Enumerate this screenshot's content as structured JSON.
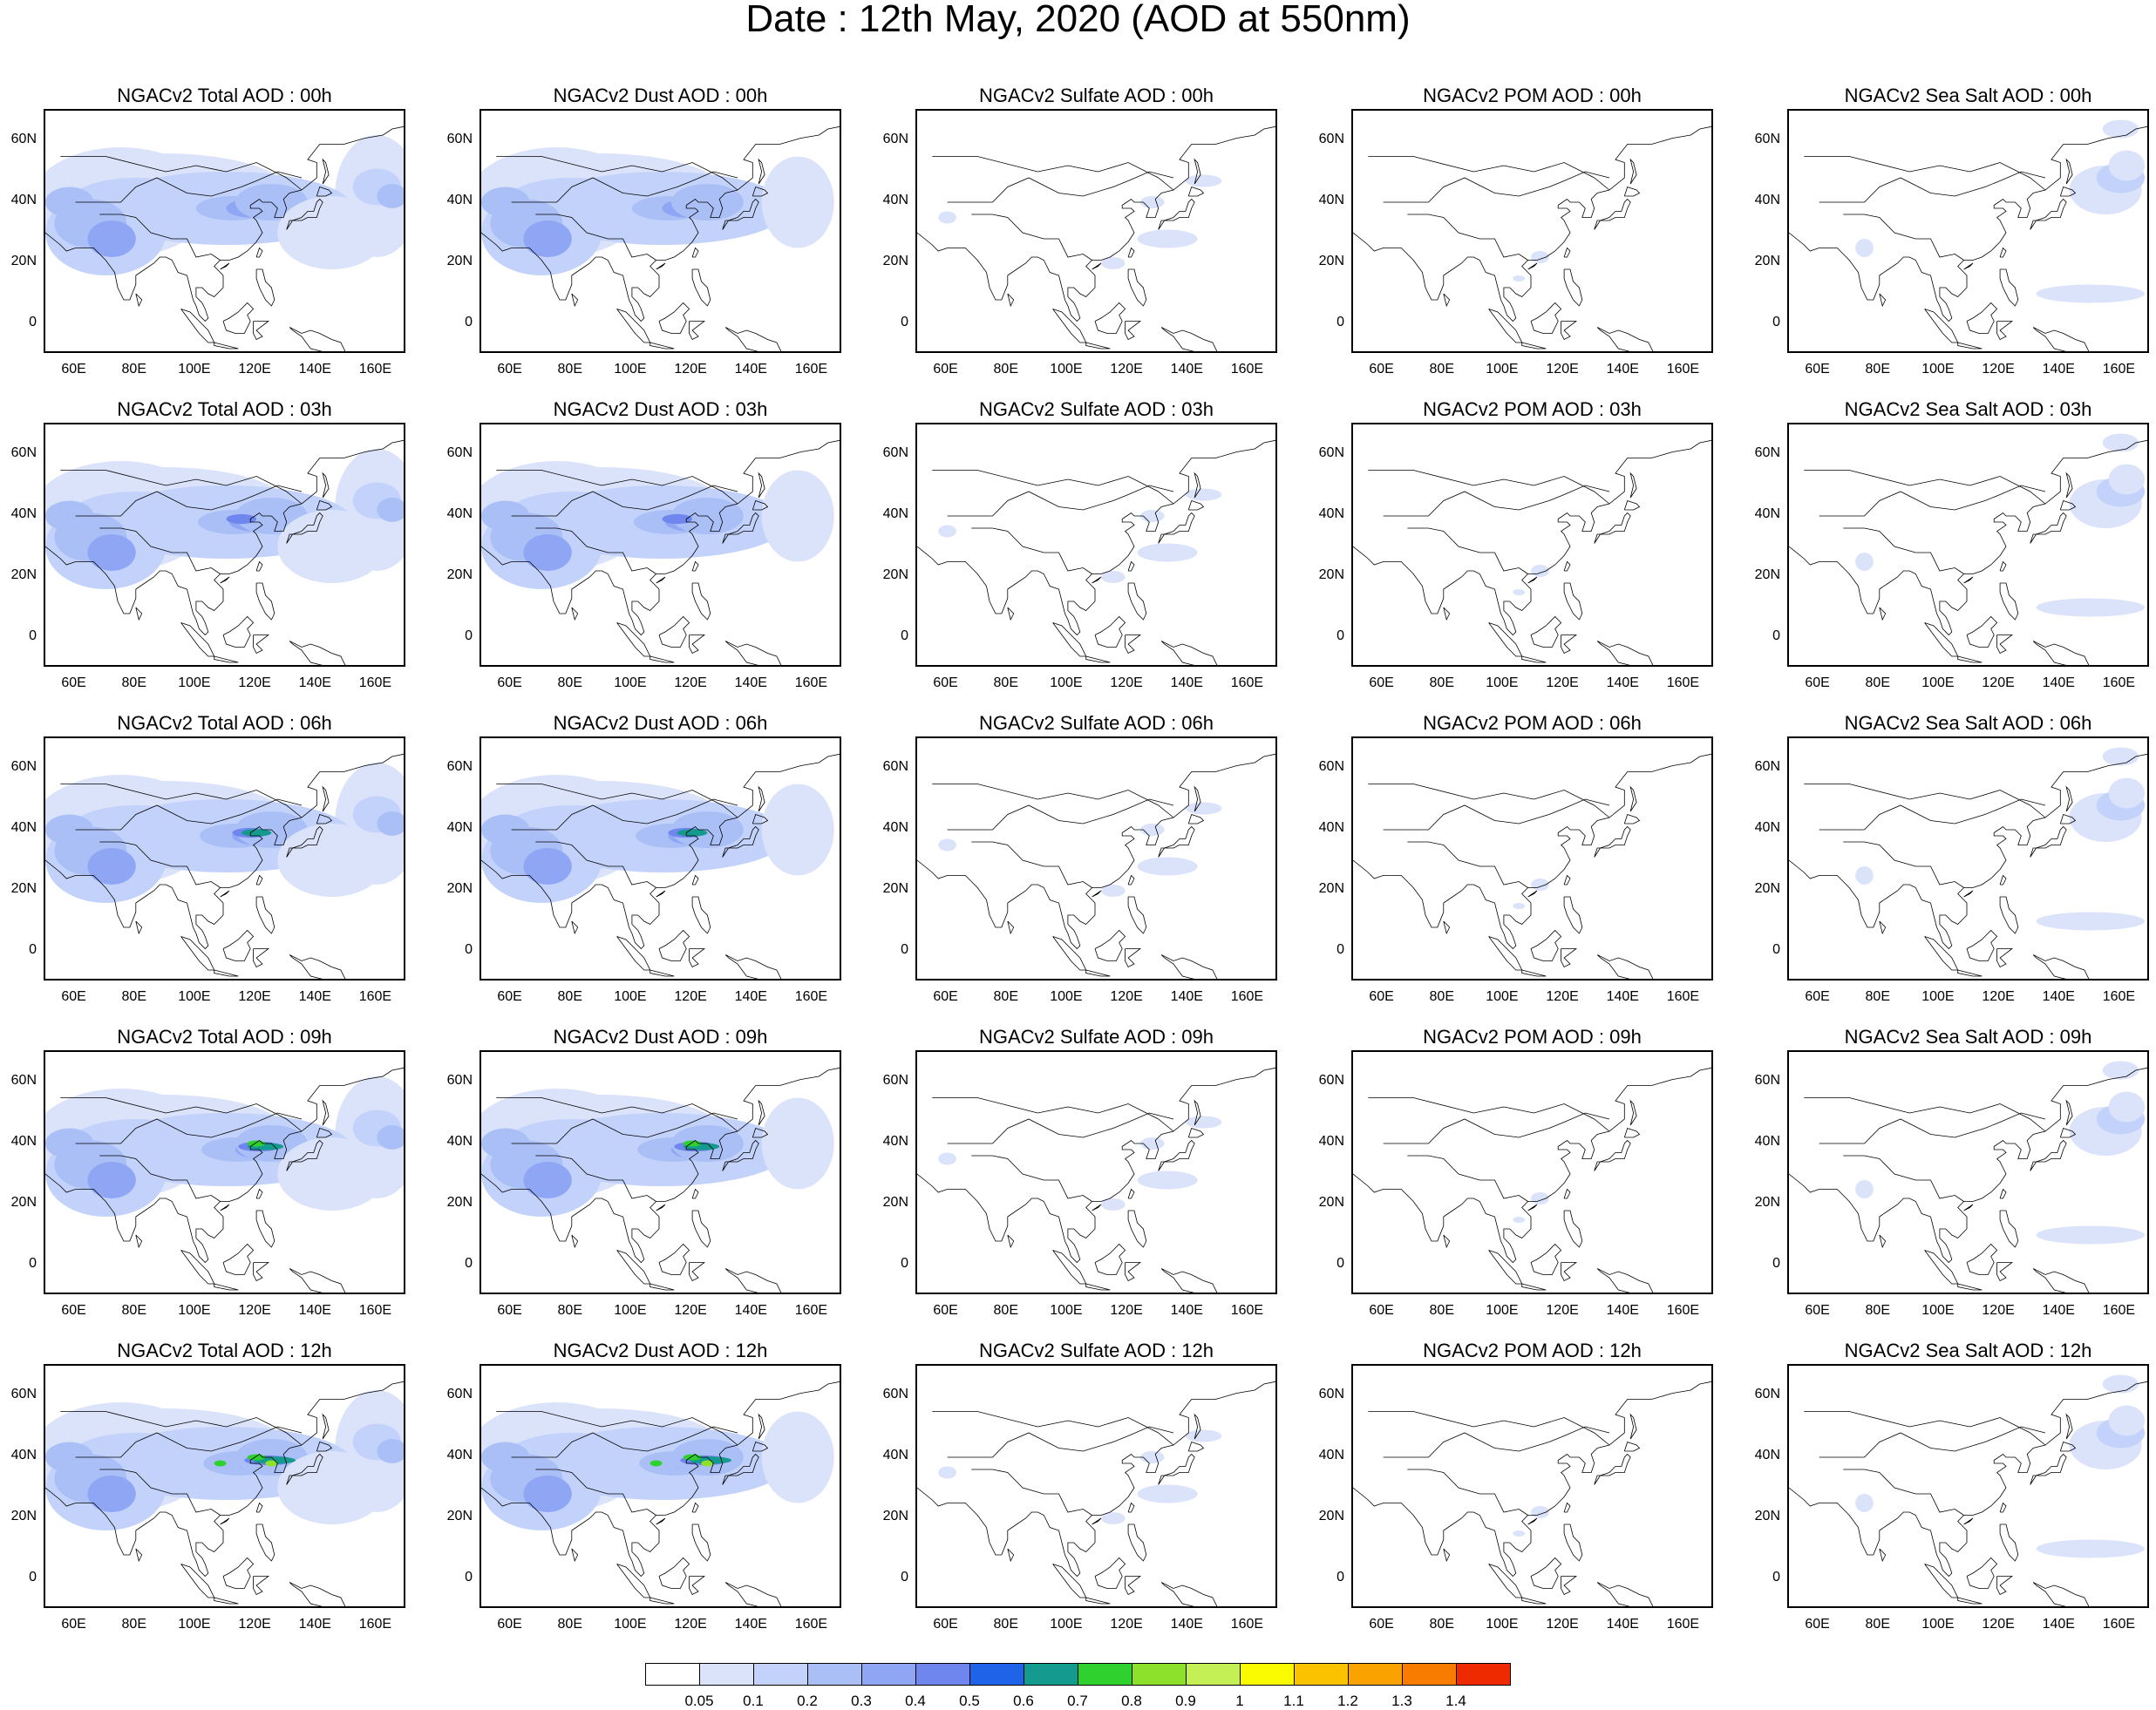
{
  "figure": {
    "title": "Date : 12th May, 2020 (AOD at 550nm)"
  },
  "axes": {
    "y_ticks": [
      "60N",
      "40N",
      "20N",
      "0"
    ],
    "x_ticks": [
      "60E",
      "80E",
      "100E",
      "120E",
      "140E",
      "160E"
    ],
    "lon_range": [
      50,
      170
    ],
    "lat_range": [
      -10,
      70
    ]
  },
  "species": [
    "Total",
    "Dust",
    "Sulfate",
    "POM",
    "Sea Salt"
  ],
  "times": [
    "00h",
    "03h",
    "06h",
    "09h",
    "12h"
  ],
  "panels": [
    [
      "NGACv2 Total AOD : 00h",
      "NGACv2 Dust AOD : 00h",
      "NGACv2 Sulfate AOD : 00h",
      "NGACv2 POM AOD : 00h",
      "NGACv2 Sea Salt AOD : 00h"
    ],
    [
      "NGACv2 Total AOD : 03h",
      "NGACv2 Dust AOD : 03h",
      "NGACv2 Sulfate AOD : 03h",
      "NGACv2 POM AOD : 03h",
      "NGACv2 Sea Salt AOD : 03h"
    ],
    [
      "NGACv2 Total AOD : 06h",
      "NGACv2 Dust AOD : 06h",
      "NGACv2 Sulfate AOD : 06h",
      "NGACv2 POM AOD : 06h",
      "NGACv2 Sea Salt AOD : 06h"
    ],
    [
      "NGACv2 Total AOD : 09h",
      "NGACv2 Dust AOD : 09h",
      "NGACv2 Sulfate AOD : 09h",
      "NGACv2 POM AOD : 09h",
      "NGACv2 Sea Salt  AOD : 09h"
    ],
    [
      "NGACv2 Total AOD  : 12h",
      "NGACv2 Dust AOD : 12h",
      "NGACv2 Sulfate AOD : 12h",
      "NGACv2 POM  AOD : 12h",
      "NGACv2 Sea Salt  AOD : 12h"
    ]
  ],
  "colorbar": {
    "labels": [
      "0.05",
      "0.1",
      "0.2",
      "0.3",
      "0.4",
      "0.5",
      "0.6",
      "0.7",
      "0.8",
      "0.9",
      "1",
      "1.1",
      "1.2",
      "1.3",
      "1.4"
    ],
    "colors": [
      "#ffffff",
      "#dbe3fb",
      "#c3d2fa",
      "#abbff7",
      "#8ea6f4",
      "#6f86ee",
      "#1f64e8",
      "#159a90",
      "#2fd12f",
      "#8de12a",
      "#c4f055",
      "#fbfb00",
      "#fbc200",
      "#f9a200",
      "#f77c00",
      "#ef2a00"
    ]
  },
  "chart_data": {
    "type": "heatmap",
    "title": "Date : 12th May, 2020 (AOD at 550nm)",
    "variable": "AOD at 550nm",
    "date": "12th May, 2020",
    "rows": [
      "00h",
      "03h",
      "06h",
      "09h",
      "12h"
    ],
    "columns": [
      "Total",
      "Dust",
      "Sulfate",
      "POM",
      "Sea Salt"
    ],
    "lon_range": [
      50,
      170
    ],
    "lat_range": [
      -10,
      70
    ],
    "levels": [
      0.05,
      0.1,
      0.2,
      0.3,
      0.4,
      0.5,
      0.6,
      0.7,
      0.8,
      0.9,
      1,
      1.1,
      1.2,
      1.3,
      1.4
    ],
    "features": {
      "Total": [
        {
          "name": "dust band across northern China",
          "lon": [
            80,
            165
          ],
          "lat": [
            30,
            50
          ],
          "max_aod": 0.9
        },
        {
          "name": "northern India / Pakistan plume",
          "lon": [
            55,
            95
          ],
          "lat": [
            15,
            40
          ],
          "max_aod": 0.5
        },
        {
          "name": "western Pacific outflow",
          "lon": [
            140,
            170
          ],
          "lat": [
            25,
            55
          ],
          "max_aod": 0.4
        }
      ],
      "Dust": [
        {
          "name": "dust band across northern China",
          "lon": [
            80,
            150
          ],
          "lat": [
            30,
            50
          ],
          "max_aod": 0.9
        },
        {
          "name": "northern India / Pakistan plume",
          "lon": [
            55,
            95
          ],
          "lat": [
            15,
            40
          ],
          "max_aod": 0.4
        }
      ],
      "Sulfate": [
        {
          "name": "East China Sea / Japan patches",
          "lon": [
            110,
            150
          ],
          "lat": [
            20,
            45
          ],
          "max_aod": 0.2
        }
      ],
      "POM": [
        {
          "name": "scattered Southeast Asia patches",
          "lon": [
            95,
            125
          ],
          "lat": [
            10,
            30
          ],
          "max_aod": 0.1
        }
      ],
      "Sea Salt": [
        {
          "name": "northwest Pacific plume",
          "lon": [
            140,
            170
          ],
          "lat": [
            30,
            60
          ],
          "max_aod": 0.4
        },
        {
          "name": "tropical Pacific band",
          "lon": [
            135,
            170
          ],
          "lat": [
            5,
            15
          ],
          "max_aod": 0.2
        }
      ]
    }
  }
}
